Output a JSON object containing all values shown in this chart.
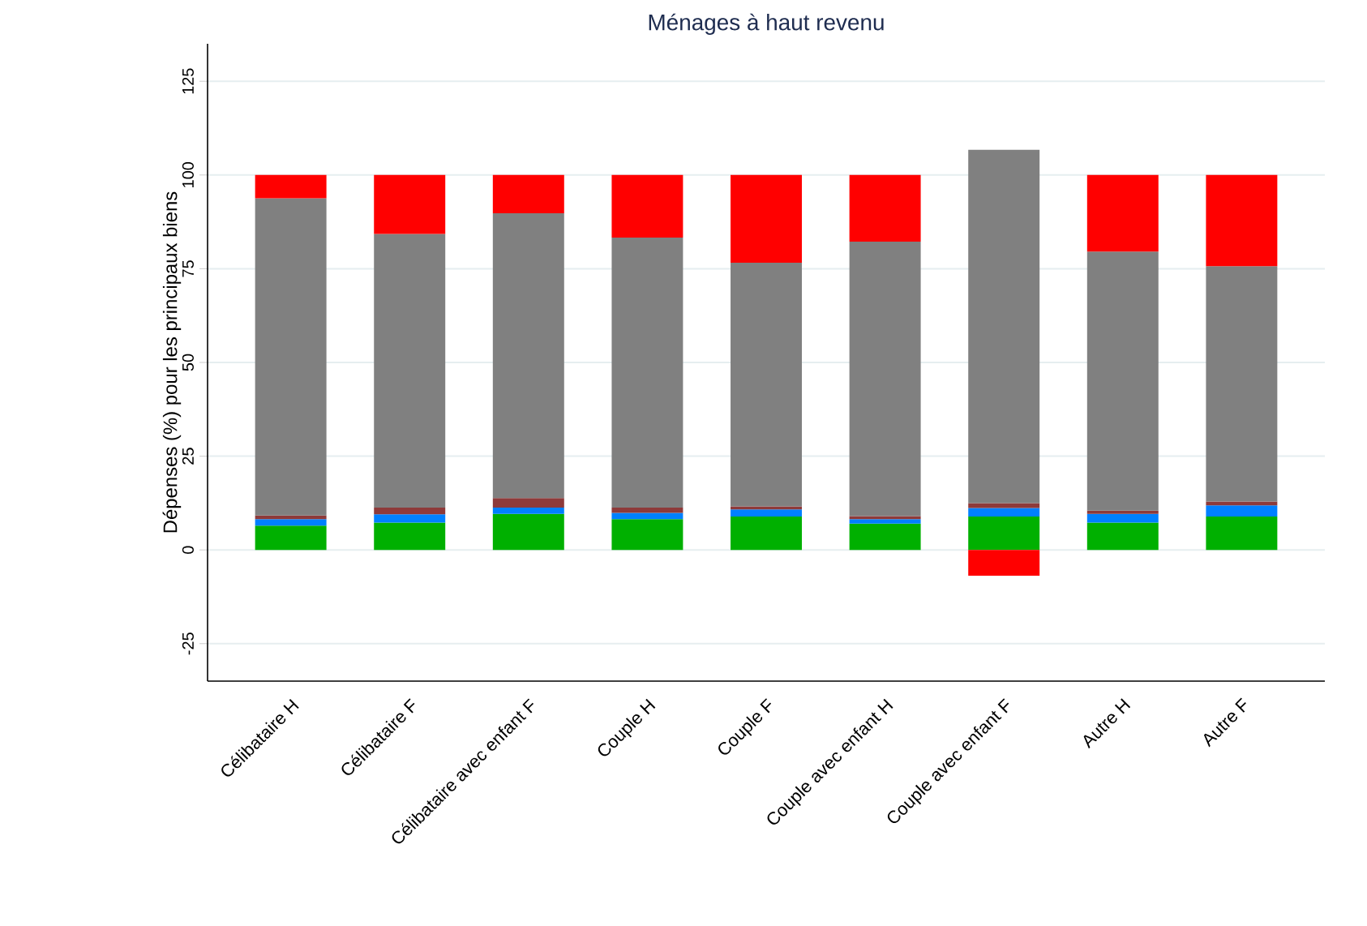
{
  "chart_data": {
    "type": "bar",
    "stacked": true,
    "title": "Ménages à haut revenu",
    "ylabel": "Dépenses (%) pour les principaux biens",
    "categories": [
      "Célibataire H",
      "Célibataire F",
      "Célibataire avec enfant F",
      "Couple H",
      "Couple F",
      "Couple avec enfant H",
      "Couple avec enfant F",
      "Autre H",
      "Autre F"
    ],
    "series": [
      {
        "color": "#00b000",
        "values": [
          6.5,
          7.3,
          9.6,
          8.2,
          8.9,
          7.0,
          8.9,
          7.3,
          8.9
        ]
      },
      {
        "color": "#0080ff",
        "values": [
          1.7,
          2.2,
          1.7,
          1.7,
          1.9,
          1.2,
          2.3,
          2.3,
          3.0
        ]
      },
      {
        "color": "#8e3a3a",
        "values": [
          1.0,
          1.8,
          2.5,
          1.4,
          0.8,
          0.8,
          1.3,
          0.9,
          1.0
        ]
      },
      {
        "color": "#808080",
        "values": [
          84.6,
          73.0,
          76.0,
          72.0,
          65.0,
          73.2,
          94.2,
          69.1,
          62.8
        ]
      },
      {
        "color": "#ff0000",
        "values": [
          6.2,
          15.7,
          10.2,
          16.7,
          23.4,
          17.8,
          -6.9,
          20.4,
          24.3
        ]
      }
    ],
    "ylim": [
      -35,
      135
    ],
    "yticks": [
      -25,
      0,
      25,
      50,
      75,
      100,
      125
    ],
    "grid": "y"
  }
}
